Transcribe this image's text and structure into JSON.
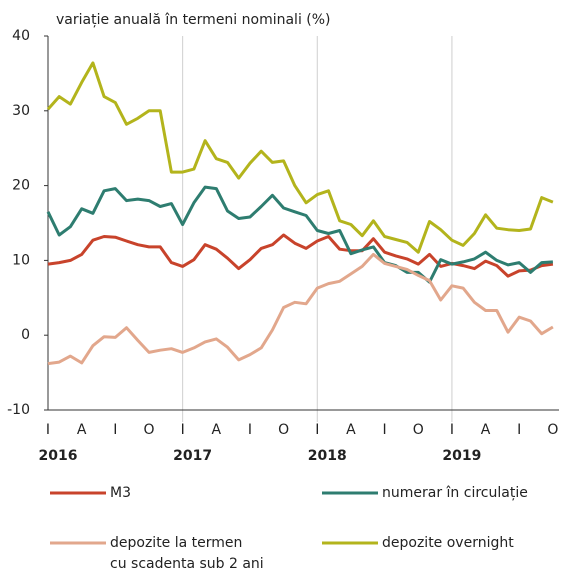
{
  "chart_data": {
    "type": "line",
    "title": "variație anuală în termeni nominali (%)",
    "categories": [
      "I",
      null,
      null,
      "A",
      null,
      null,
      "I",
      null,
      null,
      "O",
      null,
      null,
      "I",
      null,
      null,
      "A",
      null,
      null,
      "I",
      null,
      null,
      "O",
      null,
      null,
      "I",
      null,
      null,
      "A",
      null,
      null,
      "I",
      null,
      null,
      "O",
      null,
      null,
      "I",
      null,
      null,
      "A",
      null,
      null,
      "I",
      null,
      null,
      "O"
    ],
    "year_labels": [
      "2016",
      "2017",
      "2018",
      "2019"
    ],
    "ylim": [
      -10,
      40
    ],
    "yticks": [
      -10,
      0,
      10,
      20,
      30,
      40
    ],
    "series": [
      {
        "name": "M3",
        "color": "#c8432b",
        "values": [
          9.5,
          9.7,
          10,
          10.8,
          12.7,
          13.2,
          13.1,
          12.6,
          12.1,
          11.8,
          11.8,
          9.7,
          9.2,
          10.1,
          12.1,
          11.5,
          10.3,
          8.9,
          10.1,
          11.6,
          12.1,
          13.4,
          12.3,
          11.6,
          12.6,
          13.2,
          11.5,
          11.3,
          11.3,
          12.9,
          11.1,
          10.6,
          10.2,
          9.5,
          10.8,
          9.2,
          9.6,
          9.3,
          8.9,
          9.9,
          9.3,
          7.9,
          8.6,
          8.7,
          9.3,
          9.5
        ]
      },
      {
        "name": "numerar în circulație",
        "color": "#2e7d70",
        "values": [
          16.5,
          13.4,
          14.5,
          16.9,
          16.3,
          19.3,
          19.6,
          18,
          18.2,
          18,
          17.2,
          17.6,
          14.8,
          17.7,
          19.8,
          19.6,
          16.6,
          15.6,
          15.8,
          17.2,
          18.7,
          17,
          16.5,
          16,
          14,
          13.6,
          14,
          10.9,
          11.4,
          11.8,
          9.7,
          9.3,
          8.4,
          8.4,
          7.1,
          10.1,
          9.5,
          9.8,
          10.2,
          11.1,
          10,
          9.4,
          9.7,
          8.4,
          9.7,
          9.8
        ]
      },
      {
        "name": "depozite la termen\ncu scadenta sub 2 ani",
        "color": "#e2a78c",
        "values": [
          -3.8,
          -3.6,
          -2.8,
          -3.7,
          -1.4,
          -0.2,
          -0.3,
          1,
          -0.7,
          -2.3,
          -2,
          -1.8,
          -2.3,
          -1.7,
          -0.9,
          -0.5,
          -1.6,
          -3.3,
          -2.6,
          -1.7,
          0.7,
          3.7,
          4.4,
          4.2,
          6.3,
          6.9,
          7.2,
          8.2,
          9.2,
          10.8,
          9.6,
          9.2,
          8.8,
          8,
          7.3,
          4.7,
          6.6,
          6.3,
          4.4,
          3.3,
          3.3,
          0.4,
          2.4,
          1.9,
          0.2,
          1.1
        ]
      },
      {
        "name": "depozite overnight",
        "color": "#b3b41c",
        "values": [
          30.2,
          31.9,
          30.9,
          33.8,
          36.4,
          31.9,
          31.1,
          28.2,
          29,
          30,
          30,
          21.8,
          21.8,
          22.2,
          26,
          23.6,
          23.1,
          21,
          23,
          24.6,
          23.1,
          23.3,
          20,
          17.7,
          18.8,
          19.3,
          15.3,
          14.8,
          13.3,
          15.3,
          13.2,
          12.8,
          12.4,
          11.1,
          15.2,
          14.1,
          12.7,
          12,
          13.6,
          16.1,
          14.3,
          14.1,
          14,
          14.2,
          18.4,
          17.8
        ]
      }
    ]
  }
}
